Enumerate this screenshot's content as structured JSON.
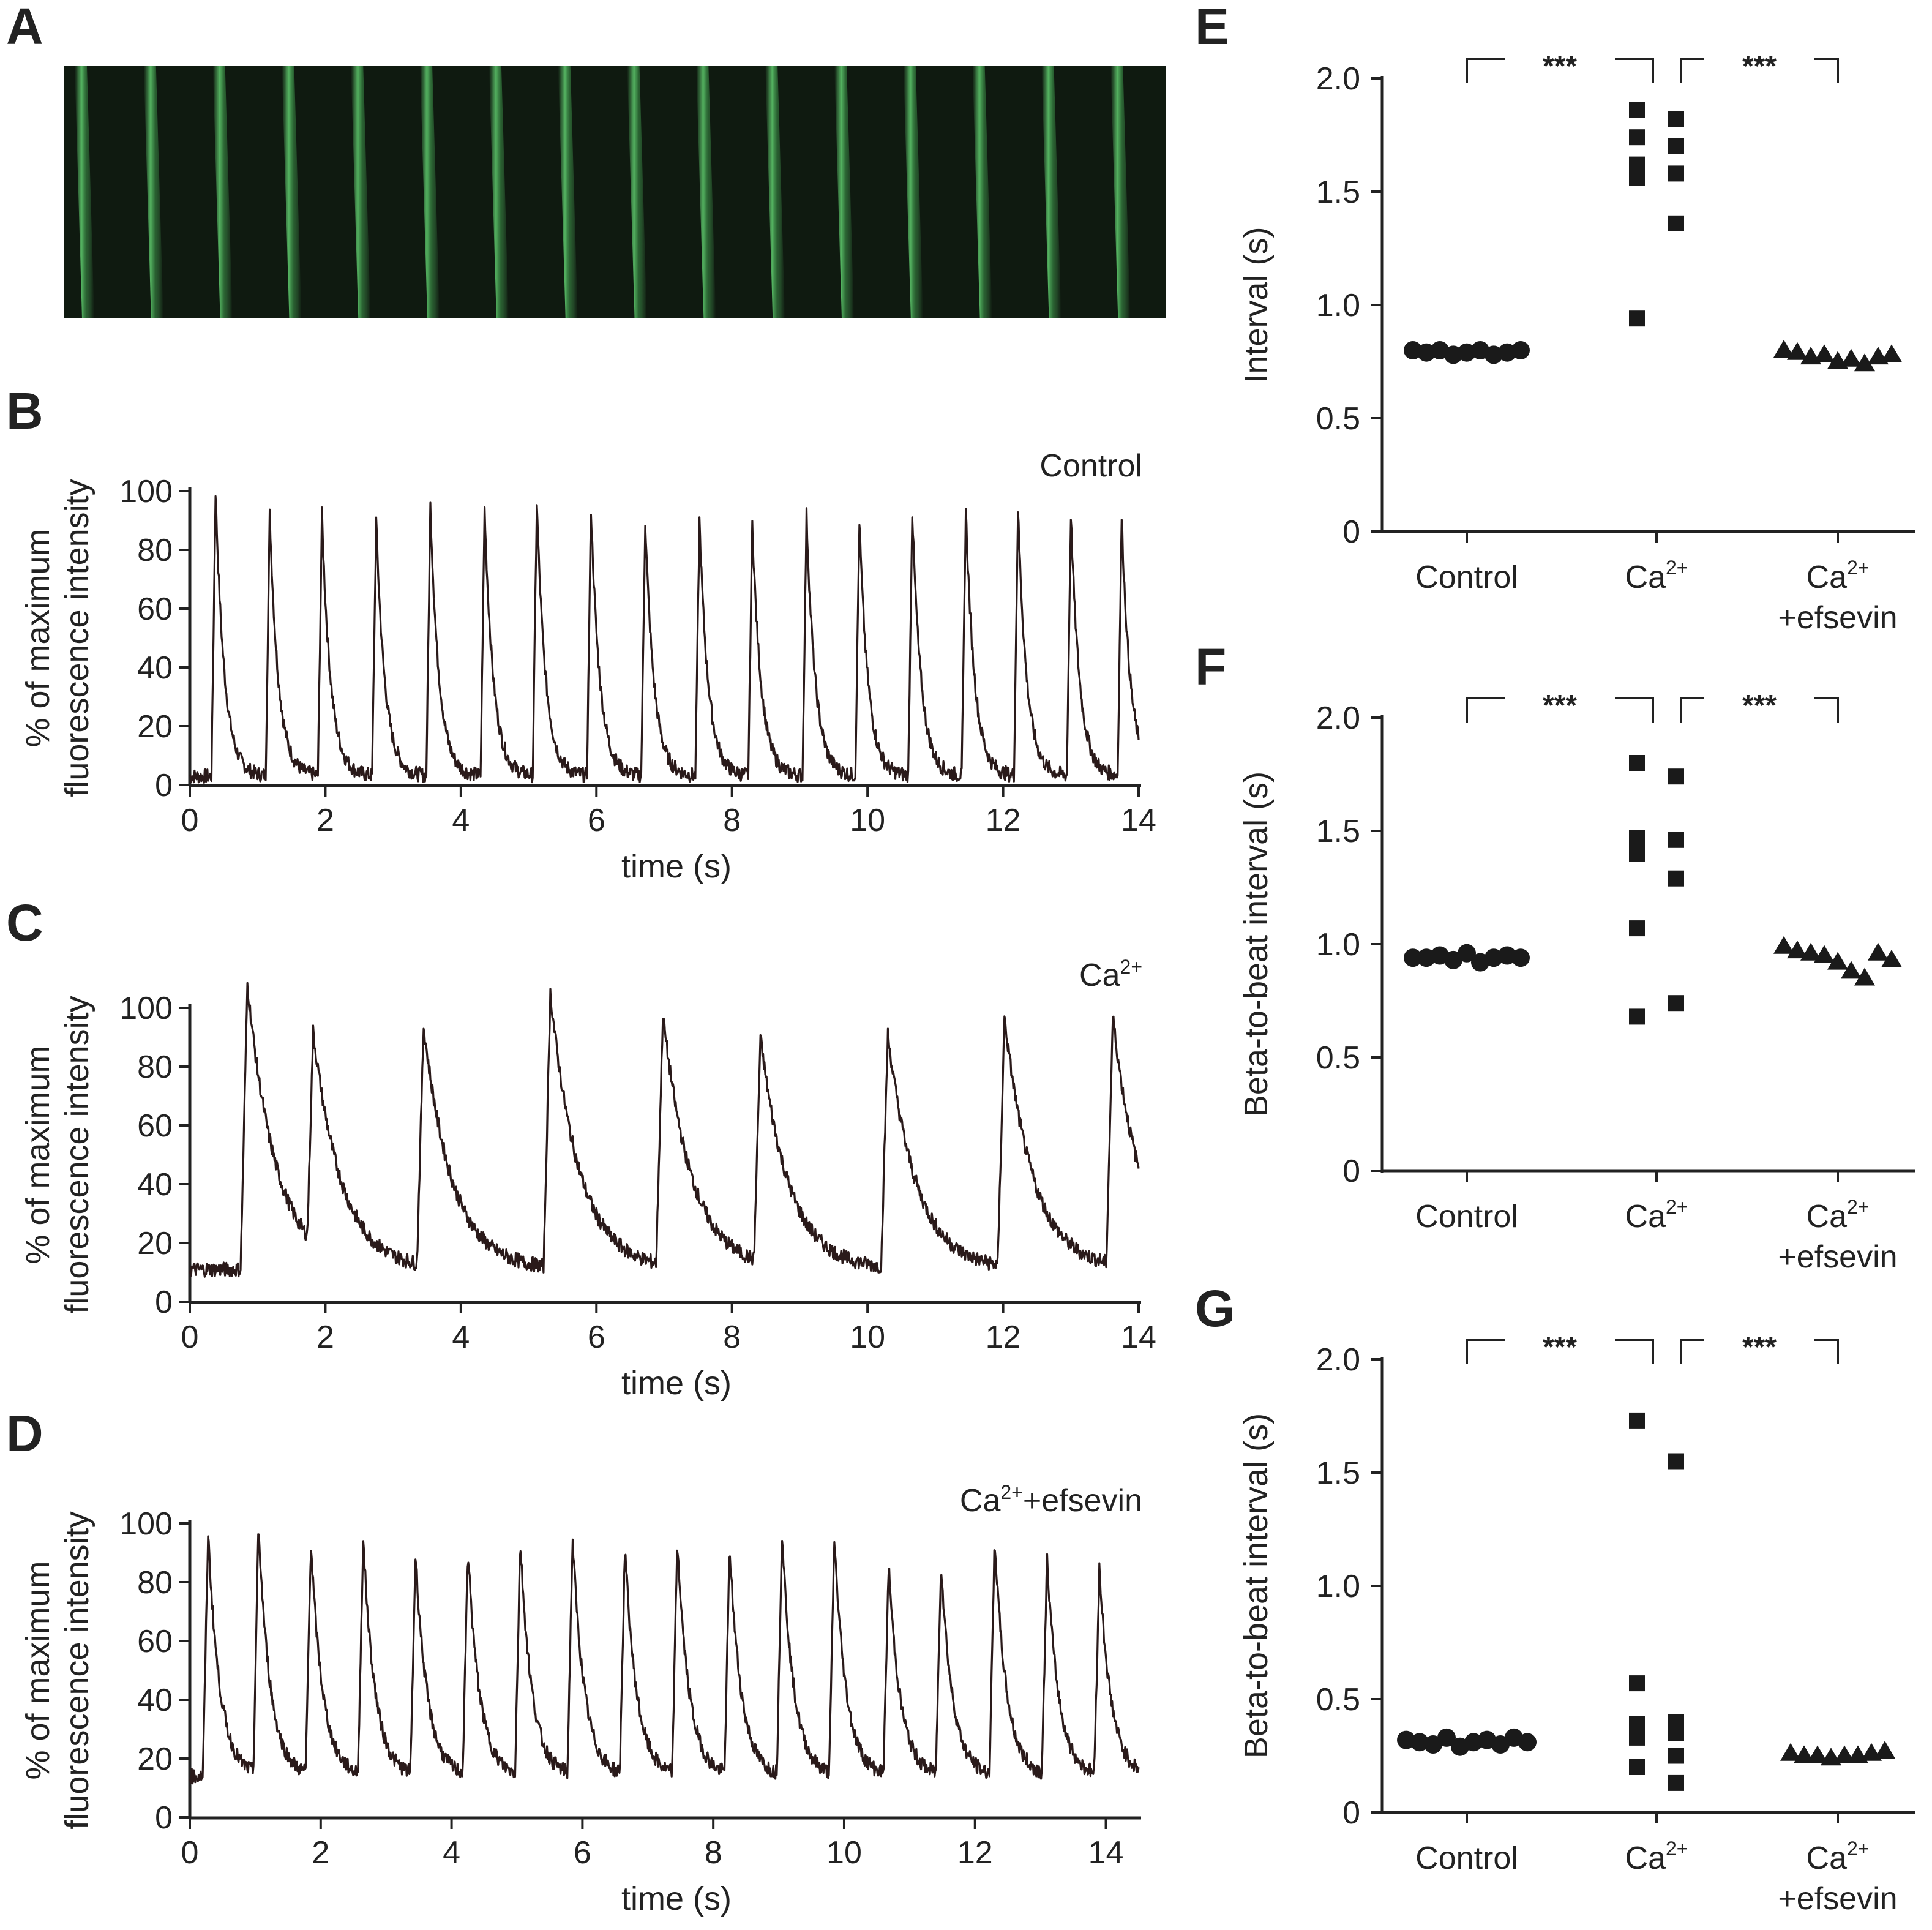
{
  "colors": {
    "trace": "#2a1a1a",
    "axis": "#222222",
    "marker": "#1a1a1a",
    "kymo_bg": "#0f1a10",
    "kymo_line": "#5cc46a"
  },
  "panels": {
    "A": {
      "letter": "A",
      "description_icon": "kymograph-image",
      "stripes": 16
    },
    "B": {
      "letter": "B",
      "condition": "Control"
    },
    "C": {
      "letter": "C",
      "condition": "Ca",
      "condition_sup": "2+"
    },
    "D": {
      "letter": "D",
      "condition": "Ca",
      "condition_sup": "2+",
      "condition_suffix": "+efsevin"
    },
    "E": {
      "letter": "E"
    },
    "F": {
      "letter": "F"
    },
    "G": {
      "letter": "G"
    }
  },
  "chart_data": [
    {
      "id": "B",
      "type": "line",
      "xlabel": "time (s)",
      "ylabel_line1": "% of maximum",
      "ylabel_line2": "fluorescence intensity",
      "xlim": [
        0,
        14
      ],
      "ylim": [
        0,
        100
      ],
      "xticks": [
        0,
        2,
        4,
        6,
        8,
        10,
        12,
        14
      ],
      "yticks": [
        0,
        20,
        40,
        60,
        80,
        100
      ],
      "baseline": 3,
      "rise": 0.06,
      "decay": 0.13,
      "peaks": [
        [
          0.38,
          100
        ],
        [
          1.18,
          92
        ],
        [
          1.95,
          92
        ],
        [
          2.75,
          90
        ],
        [
          3.55,
          95
        ],
        [
          4.35,
          94
        ],
        [
          5.12,
          96
        ],
        [
          5.92,
          94
        ],
        [
          6.72,
          90
        ],
        [
          7.52,
          90
        ],
        [
          8.3,
          89
        ],
        [
          9.1,
          92
        ],
        [
          9.88,
          90
        ],
        [
          10.66,
          93
        ],
        [
          11.45,
          94
        ],
        [
          12.22,
          94
        ],
        [
          13.0,
          92
        ],
        [
          13.75,
          91
        ]
      ]
    },
    {
      "id": "C",
      "type": "line",
      "xlabel": "time (s)",
      "ylabel_line1": "% of maximum",
      "ylabel_line2": "fluorescence intensity",
      "xlim": [
        0,
        14
      ],
      "ylim": [
        0,
        100
      ],
      "xticks": [
        0,
        2,
        4,
        6,
        8,
        10,
        12,
        14
      ],
      "yticks": [
        0,
        20,
        40,
        60,
        80,
        100
      ],
      "baseline": 11,
      "rise": 0.1,
      "decay": 0.42,
      "peaks": [
        [
          0.85,
          108
        ],
        [
          1.82,
          92
        ],
        [
          3.45,
          94
        ],
        [
          5.32,
          105
        ],
        [
          6.98,
          98
        ],
        [
          8.42,
          90
        ],
        [
          10.3,
          91
        ],
        [
          12.02,
          97
        ],
        [
          13.62,
          97
        ]
      ]
    },
    {
      "id": "D",
      "type": "line",
      "xlabel": "time (s)",
      "ylabel_line1": "% of maximum",
      "ylabel_line2": "fluorescence intensity",
      "xlim": [
        0,
        14.5
      ],
      "ylim": [
        0,
        100
      ],
      "xticks": [
        0,
        2,
        4,
        6,
        8,
        10,
        12,
        14
      ],
      "yticks": [
        0,
        20,
        40,
        60,
        80,
        100
      ],
      "baseline": 14,
      "rise": 0.08,
      "decay": 0.18,
      "peaks": [
        [
          0.28,
          97
        ],
        [
          1.05,
          99
        ],
        [
          1.85,
          94
        ],
        [
          2.65,
          95
        ],
        [
          3.45,
          90
        ],
        [
          4.25,
          91
        ],
        [
          5.05,
          94
        ],
        [
          5.85,
          95
        ],
        [
          6.65,
          92
        ],
        [
          7.45,
          94
        ],
        [
          8.25,
          92
        ],
        [
          9.05,
          97
        ],
        [
          9.85,
          95
        ],
        [
          10.68,
          86
        ],
        [
          11.48,
          87
        ],
        [
          12.3,
          95
        ],
        [
          13.1,
          88
        ],
        [
          13.9,
          85
        ]
      ]
    },
    {
      "id": "E",
      "type": "scatter",
      "ylabel": "Interval (s)",
      "ylim": [
        0,
        2.0
      ],
      "yticks": [
        "0",
        "0.5",
        "1.0",
        "1.5",
        "2.0"
      ],
      "categories": [
        "Control",
        "Ca",
        "Ca"
      ],
      "category_sups": [
        "",
        "2+",
        "2+"
      ],
      "category_line2": [
        "",
        "",
        "+efsevin"
      ],
      "significance": [
        "***",
        "***"
      ],
      "series": [
        {
          "name": "Control",
          "marker": "circle",
          "values": [
            0.8,
            0.79,
            0.8,
            0.78,
            0.79,
            0.8,
            0.78,
            0.79,
            0.8
          ]
        },
        {
          "name": "Ca2+",
          "marker": "square",
          "values": [
            1.86,
            1.82,
            1.74,
            1.7,
            1.62,
            1.58,
            1.56,
            1.36,
            0.94
          ]
        },
        {
          "name": "Ca2+ +efsevin",
          "marker": "triangle",
          "values": [
            0.8,
            0.79,
            0.77,
            0.78,
            0.75,
            0.76,
            0.74,
            0.77,
            0.78
          ]
        }
      ]
    },
    {
      "id": "F",
      "type": "scatter",
      "ylabel": "Beta-to-beat interval (s)",
      "ylim": [
        0,
        2.0
      ],
      "yticks": [
        "0",
        "0.5",
        "1.0",
        "1.5",
        "2.0"
      ],
      "categories": [
        "Control",
        "Ca",
        "Ca"
      ],
      "category_sups": [
        "",
        "2+",
        "2+"
      ],
      "category_line2": [
        "",
        "",
        "+efsevin"
      ],
      "significance": [
        "***",
        "***"
      ],
      "series": [
        {
          "name": "Control",
          "marker": "circle",
          "values": [
            0.94,
            0.94,
            0.95,
            0.93,
            0.96,
            0.92,
            0.94,
            0.95,
            0.94
          ]
        },
        {
          "name": "Ca2+",
          "marker": "square",
          "values": [
            1.8,
            1.74,
            1.47,
            1.46,
            1.4,
            1.29,
            1.07,
            0.74,
            0.68
          ]
        },
        {
          "name": "Ca2+ +efsevin",
          "marker": "triangle",
          "values": [
            0.99,
            0.97,
            0.96,
            0.95,
            0.92,
            0.88,
            0.85,
            0.96,
            0.93
          ]
        }
      ]
    },
    {
      "id": "G",
      "type": "scatter",
      "ylabel": "Beta-to-beat interval (s)",
      "ylim": [
        0,
        2.0
      ],
      "yticks": [
        "0",
        "0.5",
        "1.0",
        "1.5",
        "2.0"
      ],
      "categories": [
        "Control",
        "Ca",
        "Ca"
      ],
      "category_sups": [
        "",
        "2+",
        "2+"
      ],
      "category_line2": [
        "",
        "",
        "+efsevin"
      ],
      "significance": [
        "***",
        "***"
      ],
      "series": [
        {
          "name": "Control",
          "marker": "circle",
          "values": [
            0.32,
            0.31,
            0.3,
            0.33,
            0.29,
            0.31,
            0.32,
            0.3,
            0.33,
            0.31
          ]
        },
        {
          "name": "Ca2+",
          "marker": "square",
          "values": [
            1.73,
            1.55,
            0.57,
            0.4,
            0.39,
            0.35,
            0.33,
            0.25,
            0.2,
            0.13
          ]
        },
        {
          "name": "Ca2+ +efsevin",
          "marker": "triangle",
          "values": [
            0.26,
            0.25,
            0.25,
            0.24,
            0.25,
            0.25,
            0.26,
            0.27
          ]
        }
      ]
    }
  ]
}
